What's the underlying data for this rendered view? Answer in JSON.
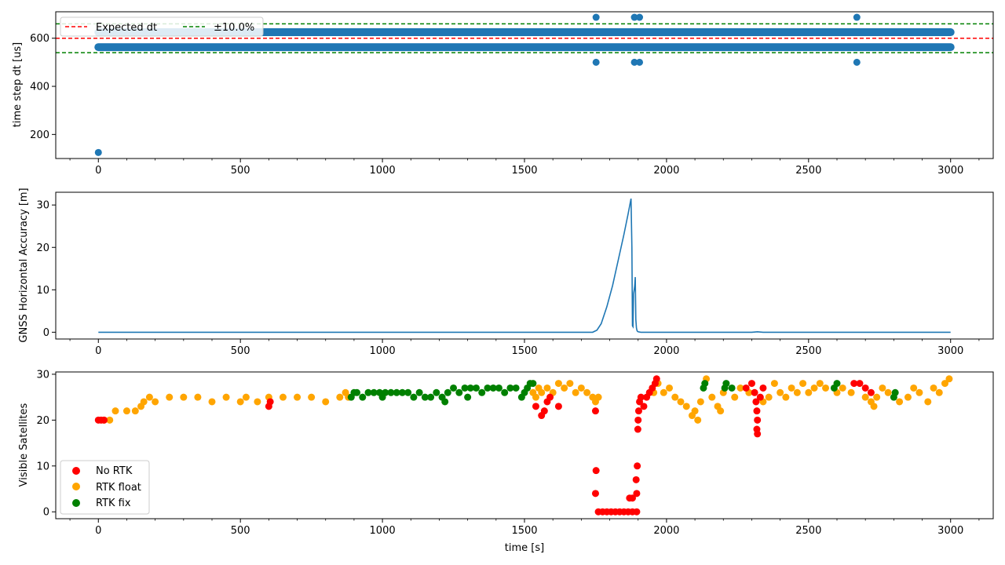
{
  "chart_data": [
    {
      "type": "scatter",
      "xlabel": "",
      "ylabel": "time step dt [us]",
      "xlim": [
        -150,
        3150
      ],
      "ylim": [
        100,
        710
      ],
      "xticks": [
        0,
        500,
        1000,
        1500,
        2000,
        2500,
        3000
      ],
      "yticks": [
        200,
        400,
        600
      ],
      "legend_position": "upper-left",
      "legend": [
        {
          "label": "Expected dt",
          "color": "#ff0000",
          "style": "dashed"
        },
        {
          "label": "±10.0%",
          "color": "#008000",
          "style": "dashed"
        }
      ],
      "reference_lines": [
        {
          "name": "Expected dt",
          "y": 600,
          "color": "#ff0000"
        },
        {
          "name": "±10.0%",
          "y": 660,
          "color": "#008000"
        },
        {
          "name": "±10.0%",
          "y": 540,
          "color": "#008000"
        }
      ],
      "series": [
        {
          "color": "#1f77b4",
          "bands": [
            {
              "y": 563,
              "x_start": 0,
              "x_end": 3000
            },
            {
              "y": 625,
              "x_start": 0,
              "x_end": 3000
            }
          ],
          "points": [
            {
              "x": 0,
              "y": 125
            },
            {
              "x": 1752,
              "y": 687
            },
            {
              "x": 1752,
              "y": 500
            },
            {
              "x": 1887,
              "y": 687
            },
            {
              "x": 1887,
              "y": 500
            },
            {
              "x": 1905,
              "y": 687
            },
            {
              "x": 1905,
              "y": 500
            },
            {
              "x": 2670,
              "y": 687
            },
            {
              "x": 2670,
              "y": 500
            }
          ]
        }
      ]
    },
    {
      "type": "line",
      "xlabel": "",
      "ylabel": "GNSS Horizontal Accuracy [m]",
      "xlim": [
        -150,
        3150
      ],
      "ylim": [
        -1.6,
        33
      ],
      "xticks": [
        0,
        500,
        1000,
        1500,
        2000,
        2500,
        3000
      ],
      "yticks": [
        0,
        10,
        20,
        30
      ],
      "series": [
        {
          "color": "#1f77b4",
          "x": [
            0,
            1740,
            1755,
            1770,
            1790,
            1810,
            1830,
            1850,
            1865,
            1875,
            1878,
            1880,
            1882,
            1884,
            1886,
            1888,
            1890,
            1892,
            1894,
            1896,
            1898,
            1900,
            1910,
            2300,
            2320,
            2340,
            3000
          ],
          "y": [
            0,
            0,
            0.5,
            2,
            6,
            11,
            17,
            23,
            28,
            31.5,
            20,
            1.5,
            1.3,
            9,
            10,
            11,
            13,
            3,
            1,
            0.4,
            0.2,
            0.1,
            0,
            0,
            0.1,
            0,
            0
          ]
        }
      ]
    },
    {
      "type": "scatter",
      "xlabel": "time [s]",
      "ylabel": "Visible Satellites",
      "xlim": [
        -150,
        3150
      ],
      "ylim": [
        -1.5,
        30.5
      ],
      "xticks": [
        0,
        500,
        1000,
        1500,
        2000,
        2500,
        3000
      ],
      "yticks": [
        0,
        10,
        20,
        30
      ],
      "legend_position": "lower-left",
      "series": [
        {
          "name": "No RTK",
          "color": "#ff0000",
          "points": [
            [
              0,
              20
            ],
            [
              10,
              20
            ],
            [
              20,
              20
            ],
            [
              600,
              23
            ],
            [
              605,
              24
            ],
            [
              1540,
              23
            ],
            [
              1560,
              21
            ],
            [
              1570,
              22
            ],
            [
              1580,
              24
            ],
            [
              1590,
              25
            ],
            [
              1620,
              23
            ],
            [
              1750,
              22
            ],
            [
              1752,
              9
            ],
            [
              1750,
              4
            ],
            [
              1760,
              0
            ],
            [
              1775,
              0
            ],
            [
              1790,
              0
            ],
            [
              1805,
              0
            ],
            [
              1820,
              0
            ],
            [
              1835,
              0
            ],
            [
              1850,
              0
            ],
            [
              1865,
              0
            ],
            [
              1880,
              0
            ],
            [
              1895,
              0
            ],
            [
              1870,
              3
            ],
            [
              1880,
              3
            ],
            [
              1895,
              4
            ],
            [
              1893,
              7
            ],
            [
              1897,
              10
            ],
            [
              1899,
              18
            ],
            [
              1900,
              20
            ],
            [
              1902,
              22
            ],
            [
              1905,
              24
            ],
            [
              1910,
              25
            ],
            [
              1920,
              23
            ],
            [
              1930,
              25
            ],
            [
              1940,
              26
            ],
            [
              1950,
              27
            ],
            [
              1960,
              28
            ],
            [
              1965,
              29
            ],
            [
              2280,
              27
            ],
            [
              2300,
              28
            ],
            [
              2310,
              26
            ],
            [
              2315,
              24
            ],
            [
              2318,
              22
            ],
            [
              2320,
              20
            ],
            [
              2318,
              18
            ],
            [
              2320,
              17
            ],
            [
              2330,
              25
            ],
            [
              2340,
              27
            ],
            [
              2660,
              28
            ],
            [
              2680,
              28
            ],
            [
              2700,
              27
            ],
            [
              2720,
              26
            ]
          ]
        },
        {
          "name": "RTK float",
          "color": "#ffa500",
          "points": [
            [
              20,
              20
            ],
            [
              40,
              20
            ],
            [
              60,
              22
            ],
            [
              100,
              22
            ],
            [
              130,
              22
            ],
            [
              150,
              23
            ],
            [
              160,
              24
            ],
            [
              180,
              25
            ],
            [
              200,
              24
            ],
            [
              250,
              25
            ],
            [
              300,
              25
            ],
            [
              350,
              25
            ],
            [
              400,
              24
            ],
            [
              450,
              25
            ],
            [
              500,
              24
            ],
            [
              520,
              25
            ],
            [
              560,
              24
            ],
            [
              600,
              25
            ],
            [
              650,
              25
            ],
            [
              700,
              25
            ],
            [
              750,
              25
            ],
            [
              800,
              24
            ],
            [
              850,
              25
            ],
            [
              870,
              26
            ],
            [
              880,
              25
            ],
            [
              1530,
              26
            ],
            [
              1540,
              25
            ],
            [
              1550,
              27
            ],
            [
              1560,
              26
            ],
            [
              1580,
              27
            ],
            [
              1600,
              26
            ],
            [
              1620,
              28
            ],
            [
              1640,
              27
            ],
            [
              1660,
              28
            ],
            [
              1680,
              26
            ],
            [
              1700,
              27
            ],
            [
              1720,
              26
            ],
            [
              1740,
              25
            ],
            [
              1750,
              24
            ],
            [
              1760,
              25
            ],
            [
              1955,
              26
            ],
            [
              1970,
              28
            ],
            [
              1990,
              26
            ],
            [
              2010,
              27
            ],
            [
              2030,
              25
            ],
            [
              2050,
              24
            ],
            [
              2070,
              23
            ],
            [
              2090,
              21
            ],
            [
              2100,
              22
            ],
            [
              2110,
              20
            ],
            [
              2120,
              24
            ],
            [
              2140,
              29
            ],
            [
              2160,
              25
            ],
            [
              2180,
              23
            ],
            [
              2190,
              22
            ],
            [
              2200,
              26
            ],
            [
              2240,
              25
            ],
            [
              2260,
              27
            ],
            [
              2290,
              26
            ],
            [
              2340,
              24
            ],
            [
              2360,
              25
            ],
            [
              2380,
              28
            ],
            [
              2400,
              26
            ],
            [
              2420,
              25
            ],
            [
              2440,
              27
            ],
            [
              2460,
              26
            ],
            [
              2480,
              28
            ],
            [
              2500,
              26
            ],
            [
              2520,
              27
            ],
            [
              2540,
              28
            ],
            [
              2560,
              27
            ],
            [
              2600,
              26
            ],
            [
              2620,
              27
            ],
            [
              2650,
              26
            ],
            [
              2700,
              25
            ],
            [
              2720,
              24
            ],
            [
              2730,
              23
            ],
            [
              2740,
              25
            ],
            [
              2760,
              27
            ],
            [
              2780,
              26
            ],
            [
              2820,
              24
            ],
            [
              2850,
              25
            ],
            [
              2870,
              27
            ],
            [
              2890,
              26
            ],
            [
              2920,
              24
            ],
            [
              2940,
              27
            ],
            [
              2960,
              26
            ],
            [
              2980,
              28
            ],
            [
              2995,
              29
            ]
          ]
        },
        {
          "name": "RTK fix",
          "color": "#008000",
          "points": [
            [
              890,
              25
            ],
            [
              900,
              26
            ],
            [
              910,
              26
            ],
            [
              930,
              25
            ],
            [
              950,
              26
            ],
            [
              970,
              26
            ],
            [
              990,
              26
            ],
            [
              1000,
              25
            ],
            [
              1010,
              26
            ],
            [
              1030,
              26
            ],
            [
              1050,
              26
            ],
            [
              1070,
              26
            ],
            [
              1090,
              26
            ],
            [
              1110,
              25
            ],
            [
              1130,
              26
            ],
            [
              1150,
              25
            ],
            [
              1170,
              25
            ],
            [
              1190,
              26
            ],
            [
              1210,
              25
            ],
            [
              1220,
              24
            ],
            [
              1230,
              26
            ],
            [
              1250,
              27
            ],
            [
              1270,
              26
            ],
            [
              1290,
              27
            ],
            [
              1300,
              25
            ],
            [
              1310,
              27
            ],
            [
              1330,
              27
            ],
            [
              1350,
              26
            ],
            [
              1370,
              27
            ],
            [
              1390,
              27
            ],
            [
              1410,
              27
            ],
            [
              1430,
              26
            ],
            [
              1450,
              27
            ],
            [
              1470,
              27
            ],
            [
              1490,
              25
            ],
            [
              1500,
              26
            ],
            [
              1510,
              27
            ],
            [
              1520,
              28
            ],
            [
              1530,
              28
            ],
            [
              2130,
              27
            ],
            [
              2135,
              28
            ],
            [
              2205,
              27
            ],
            [
              2210,
              28
            ],
            [
              2230,
              27
            ],
            [
              2590,
              27
            ],
            [
              2600,
              28
            ],
            [
              2800,
              25
            ],
            [
              2805,
              26
            ]
          ]
        }
      ]
    }
  ]
}
